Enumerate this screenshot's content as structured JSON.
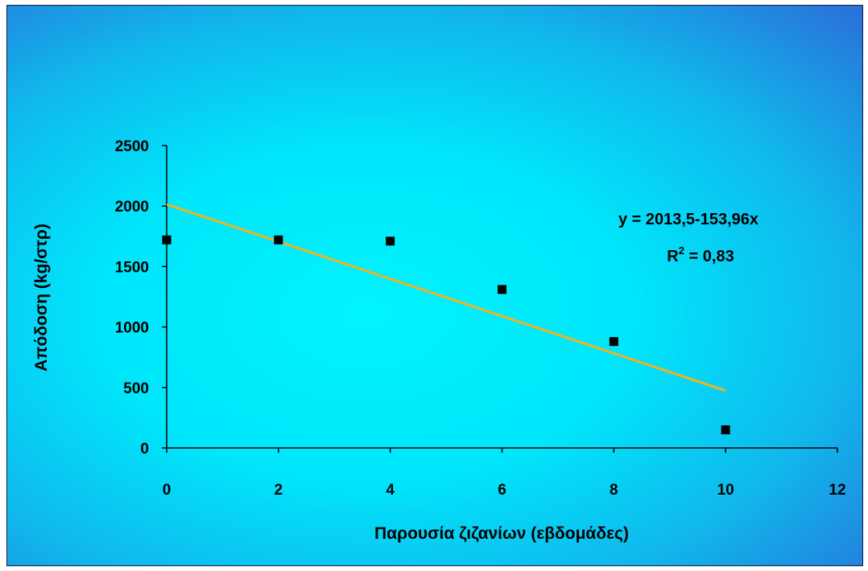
{
  "chart_data": {
    "type": "scatter",
    "xlabel": "Παρουσία ζιζανίων (εβδομάδες)",
    "ylabel": "Απόδοση (kg/στρ)",
    "xlim": [
      0,
      12
    ],
    "ylim": [
      0,
      2500
    ],
    "x_ticks": [
      "0",
      "2",
      "4",
      "6",
      "8",
      "10",
      "12"
    ],
    "y_ticks": [
      "0",
      "500",
      "1000",
      "1500",
      "2000",
      "2500"
    ],
    "points": [
      {
        "x": 0,
        "y": 1720
      },
      {
        "x": 2,
        "y": 1720
      },
      {
        "x": 4,
        "y": 1710
      },
      {
        "x": 6,
        "y": 1310
      },
      {
        "x": 8,
        "y": 880
      },
      {
        "x": 10,
        "y": 150
      }
    ],
    "trendline": {
      "intercept": 2013.5,
      "slope": -153.96,
      "x_range": [
        0,
        10
      ],
      "color": "#f2b21e"
    },
    "equation": "y = 2013,5-153,96x",
    "r_squared_prefix": "R",
    "r_squared_exponent": "2",
    "r_squared_suffix": " = 0,83",
    "grid": false,
    "marker_color": "#000000"
  }
}
